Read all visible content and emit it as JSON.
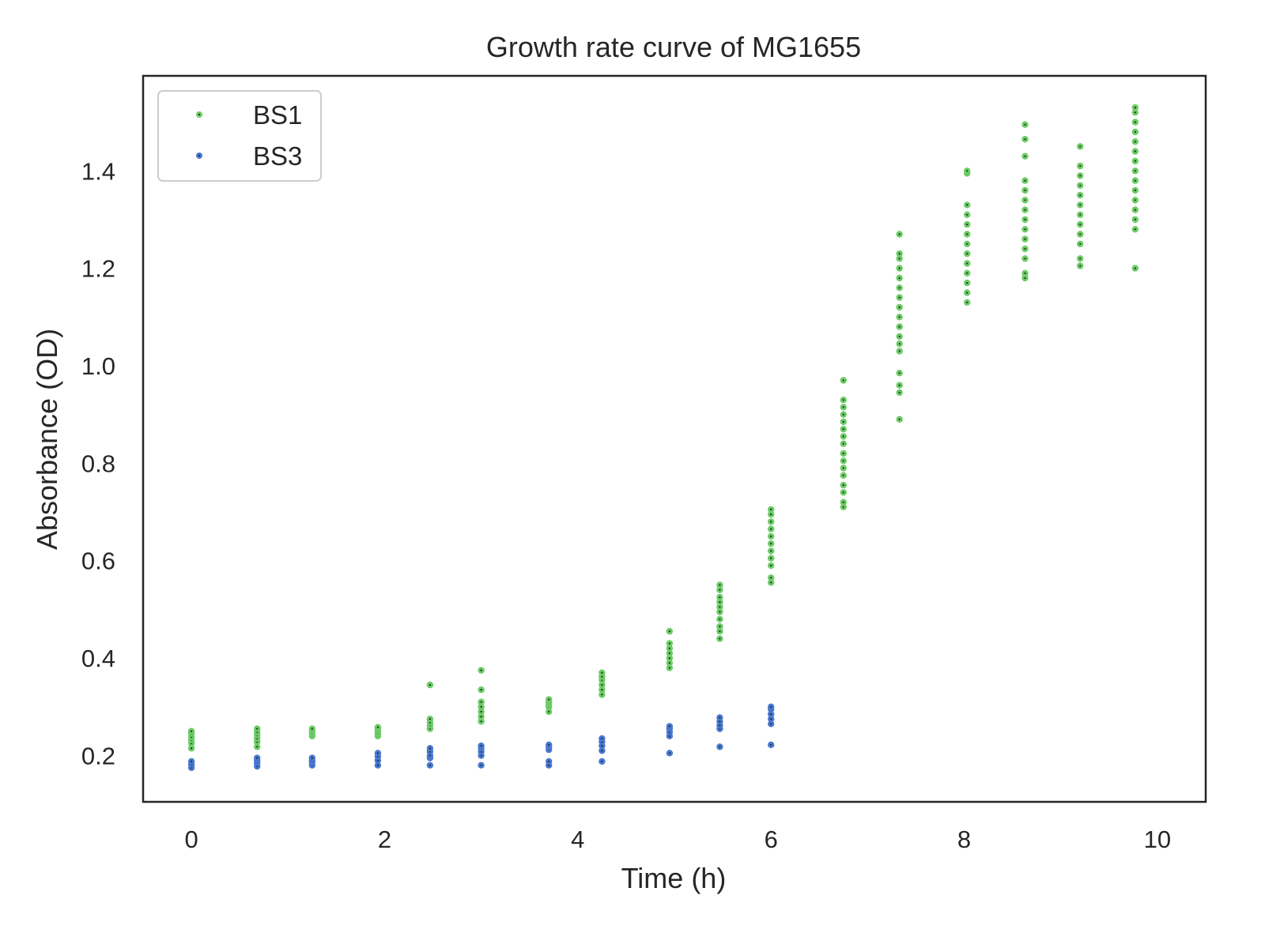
{
  "colors": {
    "BS1": "#6acc64",
    "BS3": "#4878d0",
    "center": "#262626"
  },
  "chart_data": {
    "type": "scatter",
    "title": "Growth rate curve of MG1655",
    "xlabel": "Time (h)",
    "ylabel": "Absorbance (OD)",
    "xlim": [
      -0.5,
      10.5
    ],
    "ylim": [
      0.105,
      1.595
    ],
    "xticks": [
      0,
      2,
      4,
      6,
      8,
      10
    ],
    "xtick_labels": [
      "0",
      "2",
      "4",
      "6",
      "8",
      "10"
    ],
    "yticks": [
      0.2,
      0.4,
      0.6,
      0.8,
      1.0,
      1.2,
      1.4
    ],
    "ytick_labels": [
      "0.2",
      "0.4",
      "0.6",
      "0.8",
      "1.0",
      "1.2",
      "1.4"
    ],
    "grid": false,
    "legend": {
      "position": "top-left",
      "entries": [
        "BS1",
        "BS3"
      ]
    },
    "series": [
      {
        "name": "BS1",
        "color": "#6acc64",
        "points": [
          [
            0,
            0.215
          ],
          [
            0,
            0.225
          ],
          [
            0,
            0.232
          ],
          [
            0,
            0.238
          ],
          [
            0,
            0.245
          ],
          [
            0,
            0.25
          ],
          [
            0.68,
            0.218
          ],
          [
            0.68,
            0.228
          ],
          [
            0.68,
            0.235
          ],
          [
            0.68,
            0.242
          ],
          [
            0.68,
            0.248
          ],
          [
            0.68,
            0.255
          ],
          [
            1.25,
            0.24
          ],
          [
            1.25,
            0.245
          ],
          [
            1.25,
            0.25
          ],
          [
            1.25,
            0.255
          ],
          [
            1.93,
            0.24
          ],
          [
            1.93,
            0.245
          ],
          [
            1.93,
            0.25
          ],
          [
            1.93,
            0.255
          ],
          [
            1.93,
            0.258
          ],
          [
            2.47,
            0.255
          ],
          [
            2.47,
            0.262
          ],
          [
            2.47,
            0.268
          ],
          [
            2.47,
            0.275
          ],
          [
            2.47,
            0.345
          ],
          [
            3.0,
            0.27
          ],
          [
            3.0,
            0.28
          ],
          [
            3.0,
            0.29
          ],
          [
            3.0,
            0.3
          ],
          [
            3.0,
            0.31
          ],
          [
            3.0,
            0.335
          ],
          [
            3.0,
            0.375
          ],
          [
            3.7,
            0.29
          ],
          [
            3.7,
            0.3
          ],
          [
            3.7,
            0.305
          ],
          [
            3.7,
            0.31
          ],
          [
            3.7,
            0.315
          ],
          [
            4.25,
            0.325
          ],
          [
            4.25,
            0.335
          ],
          [
            4.25,
            0.345
          ],
          [
            4.25,
            0.355
          ],
          [
            4.25,
            0.362
          ],
          [
            4.25,
            0.37
          ],
          [
            4.95,
            0.38
          ],
          [
            4.95,
            0.39
          ],
          [
            4.95,
            0.4
          ],
          [
            4.95,
            0.41
          ],
          [
            4.95,
            0.42
          ],
          [
            4.95,
            0.43
          ],
          [
            4.95,
            0.455
          ],
          [
            5.47,
            0.44
          ],
          [
            5.47,
            0.455
          ],
          [
            5.47,
            0.465
          ],
          [
            5.47,
            0.48
          ],
          [
            5.47,
            0.495
          ],
          [
            5.47,
            0.505
          ],
          [
            5.47,
            0.515
          ],
          [
            5.47,
            0.525
          ],
          [
            5.47,
            0.54
          ],
          [
            5.47,
            0.55
          ],
          [
            6.0,
            0.555
          ],
          [
            6.0,
            0.565
          ],
          [
            6.0,
            0.59
          ],
          [
            6.0,
            0.605
          ],
          [
            6.0,
            0.62
          ],
          [
            6.0,
            0.635
          ],
          [
            6.0,
            0.65
          ],
          [
            6.0,
            0.665
          ],
          [
            6.0,
            0.68
          ],
          [
            6.0,
            0.695
          ],
          [
            6.0,
            0.705
          ],
          [
            6.75,
            0.71
          ],
          [
            6.75,
            0.72
          ],
          [
            6.75,
            0.74
          ],
          [
            6.75,
            0.755
          ],
          [
            6.75,
            0.775
          ],
          [
            6.75,
            0.79
          ],
          [
            6.75,
            0.805
          ],
          [
            6.75,
            0.82
          ],
          [
            6.75,
            0.84
          ],
          [
            6.75,
            0.855
          ],
          [
            6.75,
            0.87
          ],
          [
            6.75,
            0.885
          ],
          [
            6.75,
            0.9
          ],
          [
            6.75,
            0.915
          ],
          [
            6.75,
            0.93
          ],
          [
            6.75,
            0.97
          ],
          [
            7.33,
            0.89
          ],
          [
            7.33,
            0.945
          ],
          [
            7.33,
            0.96
          ],
          [
            7.33,
            0.985
          ],
          [
            7.33,
            1.03
          ],
          [
            7.33,
            1.045
          ],
          [
            7.33,
            1.06
          ],
          [
            7.33,
            1.08
          ],
          [
            7.33,
            1.1
          ],
          [
            7.33,
            1.12
          ],
          [
            7.33,
            1.14
          ],
          [
            7.33,
            1.16
          ],
          [
            7.33,
            1.18
          ],
          [
            7.33,
            1.2
          ],
          [
            7.33,
            1.22
          ],
          [
            7.33,
            1.23
          ],
          [
            7.33,
            1.27
          ],
          [
            8.03,
            1.13
          ],
          [
            8.03,
            1.15
          ],
          [
            8.03,
            1.17
          ],
          [
            8.03,
            1.19
          ],
          [
            8.03,
            1.21
          ],
          [
            8.03,
            1.23
          ],
          [
            8.03,
            1.25
          ],
          [
            8.03,
            1.27
          ],
          [
            8.03,
            1.29
          ],
          [
            8.03,
            1.31
          ],
          [
            8.03,
            1.33
          ],
          [
            8.03,
            1.395
          ],
          [
            8.03,
            1.4
          ],
          [
            8.63,
            1.18
          ],
          [
            8.63,
            1.19
          ],
          [
            8.63,
            1.22
          ],
          [
            8.63,
            1.24
          ],
          [
            8.63,
            1.26
          ],
          [
            8.63,
            1.28
          ],
          [
            8.63,
            1.3
          ],
          [
            8.63,
            1.32
          ],
          [
            8.63,
            1.34
          ],
          [
            8.63,
            1.36
          ],
          [
            8.63,
            1.38
          ],
          [
            8.63,
            1.43
          ],
          [
            8.63,
            1.465
          ],
          [
            8.63,
            1.495
          ],
          [
            9.2,
            1.205
          ],
          [
            9.2,
            1.22
          ],
          [
            9.2,
            1.25
          ],
          [
            9.2,
            1.27
          ],
          [
            9.2,
            1.29
          ],
          [
            9.2,
            1.31
          ],
          [
            9.2,
            1.33
          ],
          [
            9.2,
            1.35
          ],
          [
            9.2,
            1.37
          ],
          [
            9.2,
            1.39
          ],
          [
            9.2,
            1.41
          ],
          [
            9.2,
            1.45
          ],
          [
            9.77,
            1.2
          ],
          [
            9.77,
            1.28
          ],
          [
            9.77,
            1.3
          ],
          [
            9.77,
            1.32
          ],
          [
            9.77,
            1.34
          ],
          [
            9.77,
            1.36
          ],
          [
            9.77,
            1.38
          ],
          [
            9.77,
            1.4
          ],
          [
            9.77,
            1.42
          ],
          [
            9.77,
            1.44
          ],
          [
            9.77,
            1.46
          ],
          [
            9.77,
            1.48
          ],
          [
            9.77,
            1.5
          ],
          [
            9.77,
            1.52
          ],
          [
            9.77,
            1.53
          ]
        ]
      },
      {
        "name": "BS3",
        "color": "#4878d0",
        "points": [
          [
            0,
            0.175
          ],
          [
            0,
            0.182
          ],
          [
            0,
            0.188
          ],
          [
            0.68,
            0.178
          ],
          [
            0.68,
            0.185
          ],
          [
            0.68,
            0.19
          ],
          [
            0.68,
            0.195
          ],
          [
            1.25,
            0.18
          ],
          [
            1.25,
            0.186
          ],
          [
            1.25,
            0.19
          ],
          [
            1.25,
            0.195
          ],
          [
            1.93,
            0.18
          ],
          [
            1.93,
            0.19
          ],
          [
            1.93,
            0.198
          ],
          [
            1.93,
            0.205
          ],
          [
            2.47,
            0.18
          ],
          [
            2.47,
            0.195
          ],
          [
            2.47,
            0.2
          ],
          [
            2.47,
            0.208
          ],
          [
            2.47,
            0.215
          ],
          [
            3.0,
            0.18
          ],
          [
            3.0,
            0.2
          ],
          [
            3.0,
            0.208
          ],
          [
            3.0,
            0.215
          ],
          [
            3.0,
            0.22
          ],
          [
            3.7,
            0.18
          ],
          [
            3.7,
            0.188
          ],
          [
            3.7,
            0.212
          ],
          [
            3.7,
            0.218
          ],
          [
            3.7,
            0.222
          ],
          [
            4.25,
            0.188
          ],
          [
            4.25,
            0.21
          ],
          [
            4.25,
            0.22
          ],
          [
            4.25,
            0.228
          ],
          [
            4.25,
            0.235
          ],
          [
            4.95,
            0.205
          ],
          [
            4.95,
            0.24
          ],
          [
            4.95,
            0.248
          ],
          [
            4.95,
            0.255
          ],
          [
            4.95,
            0.26
          ],
          [
            5.47,
            0.218
          ],
          [
            5.47,
            0.255
          ],
          [
            5.47,
            0.262
          ],
          [
            5.47,
            0.27
          ],
          [
            5.47,
            0.278
          ],
          [
            6.0,
            0.222
          ],
          [
            6.0,
            0.265
          ],
          [
            6.0,
            0.275
          ],
          [
            6.0,
            0.285
          ],
          [
            6.0,
            0.295
          ],
          [
            6.0,
            0.3
          ]
        ]
      }
    ]
  }
}
